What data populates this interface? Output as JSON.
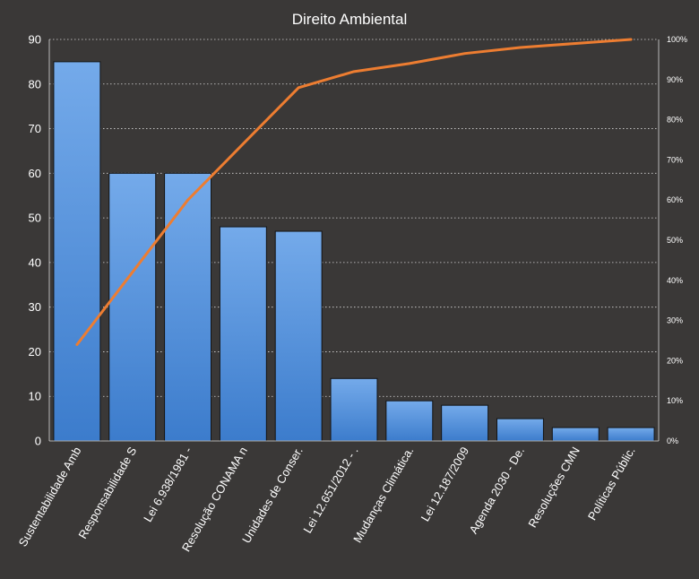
{
  "colors": {
    "background": "#3a3837",
    "bar_fill_top": "#74aaea",
    "bar_fill_bottom": "#3c7ccc",
    "bar_stroke": "#141414",
    "line": "#ed7d31",
    "grid": "#d9d9d9",
    "text": "#ffffff"
  },
  "chart_data": {
    "type": "bar",
    "title": "Direito Ambiental",
    "categories": [
      "Sustentabilidade Amb",
      "Responsabilidade S",
      "Lei 6.938/1981 -",
      "Resolução CONAMA n",
      "Unidades de Conser.",
      "Lei 12.651/2012 -  .",
      "Mudanças Climática.",
      "Lei 12.187/2009",
      "Agenda 2030 - De.",
      "Resoluções CMN",
      "Políticas Públic."
    ],
    "series": [
      {
        "type": "bar",
        "values": [
          85,
          60,
          60,
          48,
          47,
          14,
          9,
          8,
          5,
          3,
          3
        ]
      },
      {
        "type": "line",
        "axis": "right",
        "values": [
          0.24,
          0.42,
          0.6,
          0.74,
          0.88,
          0.92,
          0.94,
          0.965,
          0.98,
          0.99,
          1.0
        ]
      }
    ],
    "y_ticks": [
      "0",
      "10",
      "20",
      "30",
      "40",
      "50",
      "60",
      "70",
      "80",
      "90"
    ],
    "y2_ticks": [
      "0%",
      "10%",
      "20%",
      "30%",
      "40%",
      "50%",
      "60%",
      "70%",
      "80%",
      "90%",
      "100%"
    ],
    "ylim": [
      0,
      90
    ],
    "y2lim": [
      0,
      1
    ],
    "grid": "horizontal dotted",
    "legend": "none"
  }
}
